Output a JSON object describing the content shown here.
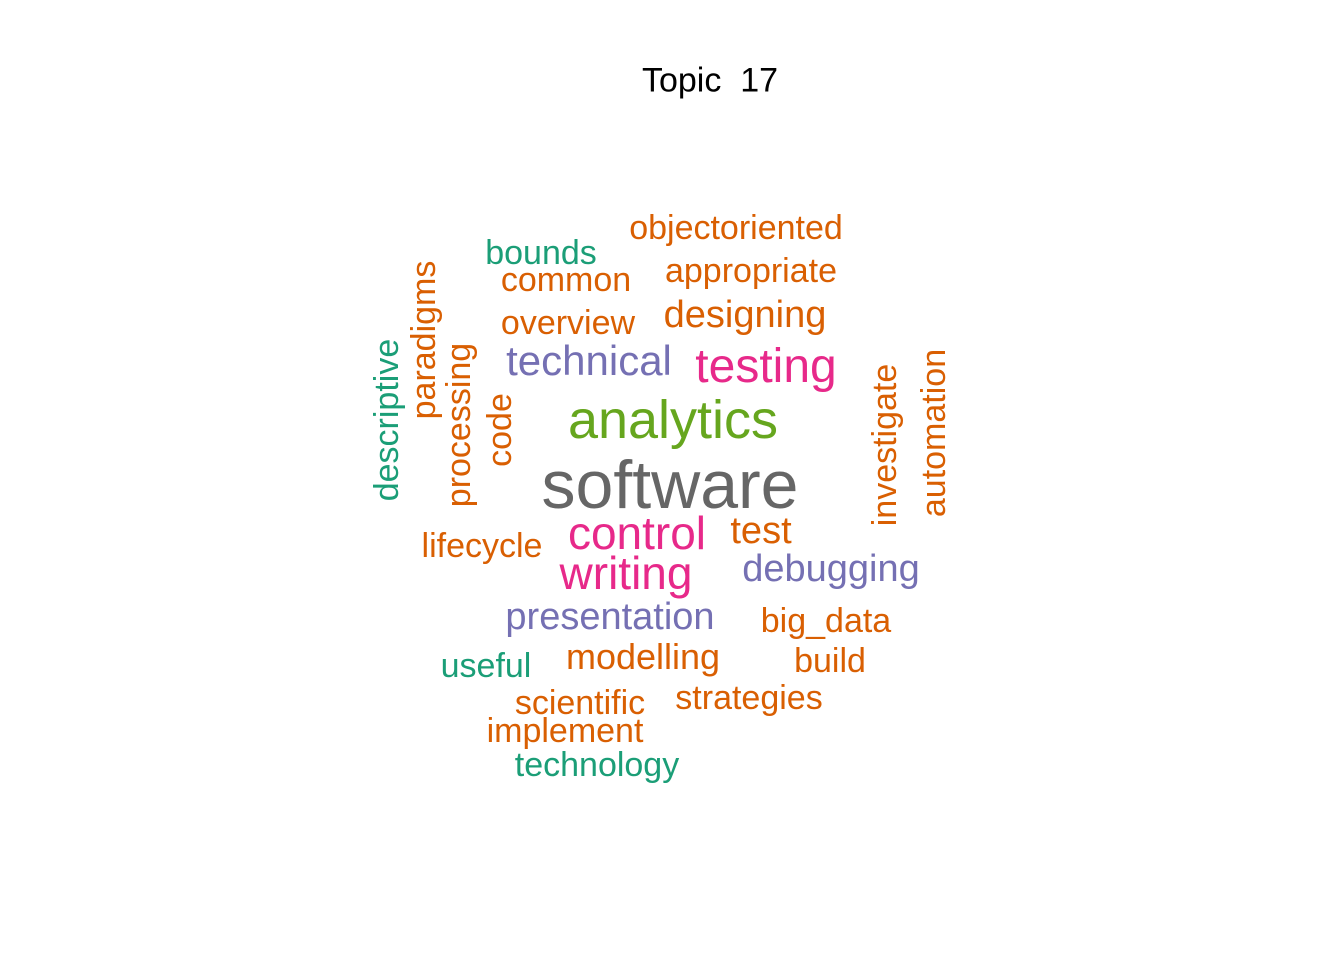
{
  "title": "Topic  17",
  "colors": {
    "gray": "#666666",
    "green": "#66a61e",
    "pink": "#e7298a",
    "purple": "#7570b3",
    "orange": "#d95f02",
    "teal": "#1b9e77"
  },
  "words": [
    {
      "id": "software",
      "text": "software",
      "color": "#666666"
    },
    {
      "id": "analytics",
      "text": "analytics",
      "color": "#66a61e"
    },
    {
      "id": "testing",
      "text": "testing",
      "color": "#e7298a"
    },
    {
      "id": "control",
      "text": "control",
      "color": "#e7298a"
    },
    {
      "id": "writing",
      "text": "writing",
      "color": "#e7298a"
    },
    {
      "id": "technical",
      "text": "technical",
      "color": "#7570b3"
    },
    {
      "id": "debugging",
      "text": "debugging",
      "color": "#7570b3"
    },
    {
      "id": "presentation",
      "text": "presentation",
      "color": "#7570b3"
    },
    {
      "id": "designing",
      "text": "designing",
      "color": "#d95f02"
    },
    {
      "id": "test",
      "text": "test",
      "color": "#d95f02"
    },
    {
      "id": "modelling",
      "text": "modelling",
      "color": "#d95f02"
    },
    {
      "id": "objectoriented",
      "text": "objectoriented",
      "color": "#d95f02"
    },
    {
      "id": "appropriate",
      "text": "appropriate",
      "color": "#d95f02"
    },
    {
      "id": "common",
      "text": "common",
      "color": "#d95f02"
    },
    {
      "id": "overview",
      "text": "overview",
      "color": "#d95f02"
    },
    {
      "id": "lifecycle",
      "text": "lifecycle",
      "color": "#d95f02"
    },
    {
      "id": "big_data",
      "text": "big_data",
      "color": "#d95f02"
    },
    {
      "id": "build",
      "text": "build",
      "color": "#d95f02"
    },
    {
      "id": "scientific",
      "text": "scientific",
      "color": "#d95f02"
    },
    {
      "id": "strategies",
      "text": "strategies",
      "color": "#d95f02"
    },
    {
      "id": "implement",
      "text": "implement",
      "color": "#d95f02"
    },
    {
      "id": "paradigms",
      "text": "paradigms",
      "color": "#d95f02"
    },
    {
      "id": "processing",
      "text": "processing",
      "color": "#d95f02"
    },
    {
      "id": "code",
      "text": "code",
      "color": "#d95f02"
    },
    {
      "id": "investigate",
      "text": "investigate",
      "color": "#d95f02"
    },
    {
      "id": "automation",
      "text": "automation",
      "color": "#d95f02"
    },
    {
      "id": "bounds",
      "text": "bounds",
      "color": "#1b9e77"
    },
    {
      "id": "useful",
      "text": "useful",
      "color": "#1b9e77"
    },
    {
      "id": "technology",
      "text": "technology",
      "color": "#1b9e77"
    },
    {
      "id": "descriptive",
      "text": "descriptive",
      "color": "#1b9e77"
    }
  ]
}
